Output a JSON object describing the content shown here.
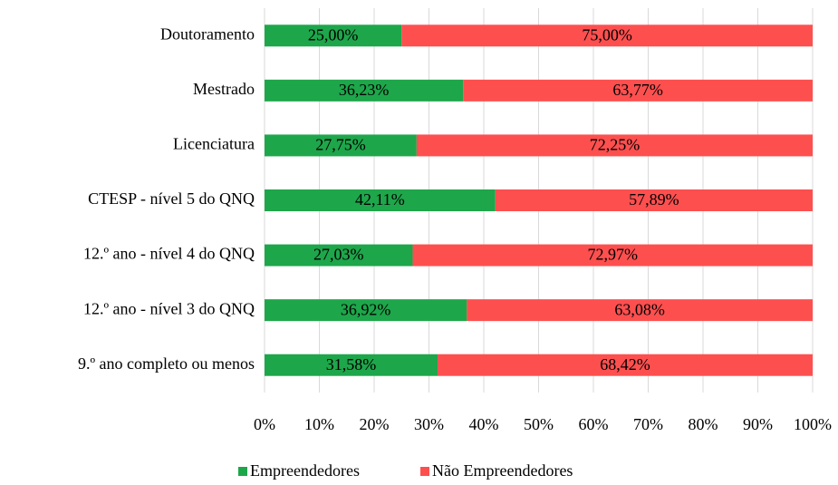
{
  "chart_data": {
    "type": "stacked-bar-horizontal",
    "categories": [
      "Doutoramento",
      "Mestrado",
      "Licenciatura",
      "CTESP - nível 5 do QNQ",
      "12.º ano - nível 4 do QNQ",
      "12.º ano - nível 3 do QNQ",
      "9.º ano completo ou menos"
    ],
    "series": [
      {
        "name": "Empreendedores",
        "color": "#1ea64b",
        "values": [
          25.0,
          36.23,
          27.75,
          42.11,
          27.03,
          36.92,
          31.58
        ],
        "value_labels": [
          "25,00%",
          "36,23%",
          "27,75%",
          "42,11%",
          "27,03%",
          "36,92%",
          "31,58%"
        ]
      },
      {
        "name": "Não Empreendedores",
        "color": "#fe4f4f",
        "values": [
          75.0,
          63.77,
          72.25,
          57.89,
          72.97,
          63.08,
          68.42
        ],
        "value_labels": [
          "75,00%",
          "63,77%",
          "72,25%",
          "57,89%",
          "72,97%",
          "63,08%",
          "68,42%"
        ]
      }
    ],
    "xlim": [
      0,
      100
    ],
    "xticks": [
      {
        "value": 0,
        "label": "0%"
      },
      {
        "value": 10,
        "label": "10%"
      },
      {
        "value": 20,
        "label": "20%"
      },
      {
        "value": 30,
        "label": "30%"
      },
      {
        "value": 40,
        "label": "40%"
      },
      {
        "value": 50,
        "label": "50%"
      },
      {
        "value": 60,
        "label": "60%"
      },
      {
        "value": 70,
        "label": "70%"
      },
      {
        "value": 80,
        "label": "80%"
      },
      {
        "value": 90,
        "label": "90%"
      },
      {
        "value": 100,
        "label": "100%"
      }
    ],
    "grid": true,
    "legend": "bottom"
  }
}
